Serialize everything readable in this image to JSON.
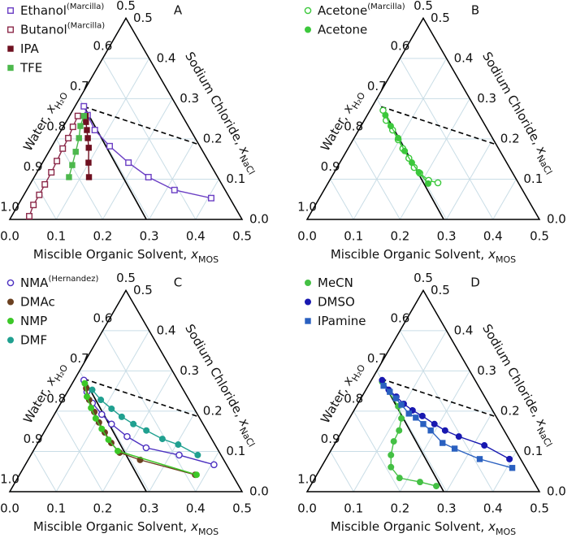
{
  "chart_data": [
    {
      "type": "ternary",
      "panel": "A",
      "xlabel": "Miscible Organic Solvent,",
      "xlabel_var": "x",
      "xlabel_sub": "MOS",
      "leftlabel": "Water,",
      "leftlabel_var": "x",
      "leftlabel_sub": "H₂O",
      "rightlabel": "Sodium Chloride,",
      "rightlabel_var": "x",
      "rightlabel_sub": "NaCl",
      "mos_lim": [
        0,
        0.5
      ],
      "nacl_lim": [
        0,
        0.5
      ],
      "water_lim": [
        0.5,
        1
      ],
      "mos_ticks": [
        {
          "value": 0,
          "label": "0.0"
        },
        0.1,
        0.2,
        0.3,
        0.4,
        0.5
      ],
      "nacl_ticks": [
        {
          "value": 0,
          "label": "0.0"
        },
        0.1,
        0.2,
        0.3,
        0.4,
        0.5
      ],
      "water_ticks": [
        0.5,
        0.6,
        0.7,
        0.8,
        0.9,
        {
          "value": 1,
          "label": "1.0"
        }
      ],
      "grid": true,
      "grid_color": "#c9dde6",
      "tie_line": {
        "mos": [
          0.02,
          0.314
        ],
        "nacl": [
          0.28,
          0.186
        ]
      },
      "boundary": {
        "mos": [
          0.02,
          0.294
        ],
        "nacl": [
          0.28,
          0
        ]
      },
      "series": [
        {
          "name": "Ethanol",
          "name_note": "(Marcilla)",
          "color": "#6b3fc4",
          "marker": "square-open",
          "mos": [
            0.019,
            0.038,
            0.072,
            0.124,
            0.185,
            0.246,
            0.318,
            0.407
          ],
          "nacl": [
            0.281,
            0.259,
            0.222,
            0.182,
            0.141,
            0.105,
            0.073,
            0.053
          ]
        },
        {
          "name": "Butanol",
          "name_note": "(Marcilla)",
          "color": "#8c2a4a",
          "marker": "square-open",
          "mos": [
            0.018,
            0.021,
            0.025,
            0.026,
            0.029,
            0.031,
            0.032,
            0.033,
            0.033,
            0.038
          ],
          "nacl": [
            0.257,
            0.23,
            0.202,
            0.176,
            0.145,
            0.117,
            0.087,
            0.061,
            0.036,
            0.008
          ]
        },
        {
          "name": "IPA",
          "color": "#6e1020",
          "marker": "square",
          "mos": [
            0.035,
            0.043,
            0.055,
            0.067,
            0.081,
            0.099,
            0.118
          ],
          "nacl": [
            0.257,
            0.242,
            0.222,
            0.202,
            0.178,
            0.141,
            0.105
          ]
        },
        {
          "name": "TFE",
          "color": "#4cb84c",
          "marker": "square",
          "mos": [
            0.031,
            0.036,
            0.048,
            0.058,
            0.067,
            0.075
          ],
          "nacl": [
            0.257,
            0.232,
            0.202,
            0.168,
            0.135,
            0.105
          ]
        }
      ]
    },
    {
      "type": "ternary",
      "panel": "B",
      "xlabel": "Miscible Organic Solvent,",
      "xlabel_var": "x",
      "xlabel_sub": "MOS",
      "leftlabel": "Water,",
      "leftlabel_var": "x",
      "leftlabel_sub": "H₂O",
      "rightlabel": "Sodium Chloride,",
      "rightlabel_var": "x",
      "rightlabel_sub": "NaCl",
      "mos_lim": [
        0,
        0.5
      ],
      "nacl_lim": [
        0,
        0.5
      ],
      "water_lim": [
        0.5,
        1
      ],
      "mos_ticks": [
        {
          "value": 0,
          "label": "0.0"
        },
        0.1,
        0.2,
        0.3,
        0.4,
        0.5
      ],
      "nacl_ticks": [
        {
          "value": 0,
          "label": "0.0"
        },
        0.1,
        0.2,
        0.3,
        0.4,
        0.5
      ],
      "water_ticks": [
        0.5,
        0.6,
        0.7,
        0.8,
        0.9,
        {
          "value": 1,
          "label": "1.0"
        }
      ],
      "grid": true,
      "grid_color": "#c9dde6",
      "tie_line": {
        "mos": [
          0.02,
          0.314
        ],
        "nacl": [
          0.28,
          0.186
        ]
      },
      "boundary": {
        "mos": [
          0.02,
          0.294
        ],
        "nacl": [
          0.28,
          0
        ]
      },
      "series": [
        {
          "name": "Acetone",
          "name_note": "(Marcilla)",
          "color": "#3cc83c",
          "marker": "circle-open",
          "mos": [
            0.028,
            0.047,
            0.073,
            0.097,
            0.118,
            0.143,
            0.166,
            0.185,
            0.213,
            0.236
          ],
          "nacl": [
            0.271,
            0.246,
            0.222,
            0.198,
            0.176,
            0.152,
            0.129,
            0.115,
            0.097,
            0.091
          ]
        },
        {
          "name": "Acetone",
          "color": "#3cc83c",
          "marker": "circle",
          "mos": [
            0.039,
            0.064,
            0.095,
            0.125,
            0.155,
            0.182,
            0.216
          ],
          "nacl": [
            0.259,
            0.232,
            0.202,
            0.17,
            0.141,
            0.117,
            0.089
          ]
        }
      ]
    },
    {
      "type": "ternary",
      "panel": "C",
      "xlabel": "Miscible Organic Solvent,",
      "xlabel_var": "x",
      "xlabel_sub": "MOS",
      "leftlabel": "Water,",
      "leftlabel_var": "x",
      "leftlabel_sub": "H₂O",
      "rightlabel": "Sodium Chloride,",
      "rightlabel_var": "x",
      "rightlabel_sub": "NaCl",
      "mos_lim": [
        0,
        0.5
      ],
      "nacl_lim": [
        0,
        0.5
      ],
      "water_lim": [
        0.5,
        1
      ],
      "mos_ticks": [
        {
          "value": 0,
          "label": "0.0"
        },
        0.1,
        0.2,
        0.3,
        0.4,
        0.5
      ],
      "nacl_ticks": [
        {
          "value": 0,
          "label": "0.0"
        },
        0.1,
        0.2,
        0.3,
        0.4,
        0.5
      ],
      "water_ticks": [
        0.5,
        0.6,
        0.7,
        0.8,
        0.9,
        {
          "value": 1,
          "label": "1.0"
        }
      ],
      "grid": true,
      "grid_color": "#c9dde6",
      "tie_line": {
        "mos": [
          0.02,
          0.314
        ],
        "nacl": [
          0.28,
          0.186
        ]
      },
      "boundary": {
        "mos": [
          0.02,
          0.294
        ],
        "nacl": [
          0.28,
          0
        ]
      },
      "series": [
        {
          "name": "NMA",
          "name_note": "(Hernandez)",
          "color": "#4b2fc0",
          "marker": "circle-open",
          "mos": [
            0.021,
            0.042,
            0.068,
            0.102,
            0.135,
            0.184,
            0.239,
            0.319,
            0.406
          ],
          "nacl": [
            0.277,
            0.248,
            0.22,
            0.192,
            0.168,
            0.137,
            0.109,
            0.091,
            0.067
          ]
        },
        {
          "name": "DMAc",
          "color": "#6b4020",
          "marker": "circle",
          "mos": [
            0.036,
            0.057,
            0.083,
            0.106,
            0.131,
            0.158,
            0.188,
            0.241,
            0.378
          ],
          "nacl": [
            0.257,
            0.228,
            0.198,
            0.172,
            0.147,
            0.121,
            0.097,
            0.079,
            0.042
          ]
        },
        {
          "name": "NMP",
          "color": "#3cc828",
          "marker": "circle",
          "mos": [
            0.027,
            0.048,
            0.071,
            0.094,
            0.12,
            0.148,
            0.182,
            0.381
          ],
          "nacl": [
            0.269,
            0.236,
            0.208,
            0.182,
            0.156,
            0.129,
            0.101,
            0.042
          ]
        },
        {
          "name": "DMF",
          "color": "#20a090",
          "marker": "circle",
          "mos": [
            0.051,
            0.082,
            0.116,
            0.148,
            0.182,
            0.218,
            0.263,
            0.304,
            0.359
          ],
          "nacl": [
            0.253,
            0.228,
            0.206,
            0.186,
            0.168,
            0.152,
            0.131,
            0.117,
            0.091
          ]
        }
      ]
    },
    {
      "type": "ternary",
      "panel": "D",
      "xlabel": "Miscible Organic Solvent,",
      "xlabel_var": "x",
      "xlabel_sub": "MOS",
      "leftlabel": "Water,",
      "leftlabel_var": "x",
      "leftlabel_sub": "H₂O",
      "rightlabel": "Sodium Chloride,",
      "rightlabel_var": "x",
      "rightlabel_sub": "NaCl",
      "mos_lim": [
        0,
        0.5
      ],
      "nacl_lim": [
        0,
        0.5
      ],
      "water_lim": [
        0.5,
        1
      ],
      "mos_ticks": [
        {
          "value": 0,
          "label": "0.0"
        },
        0.1,
        0.2,
        0.3,
        0.4,
        0.5
      ],
      "nacl_ticks": [
        {
          "value": 0,
          "label": "0.0"
        },
        0.1,
        0.2,
        0.3,
        0.4,
        0.5
      ],
      "water_ticks": [
        0.5,
        0.6,
        0.7,
        0.8,
        0.9,
        {
          "value": 1,
          "label": "1.0"
        }
      ],
      "grid": true,
      "grid_color": "#c9dde6",
      "tie_line": {
        "mos": [
          0.02,
          0.314
        ],
        "nacl": [
          0.28,
          0.186
        ]
      },
      "boundary": {
        "mos": [
          0.02,
          0.294
        ],
        "nacl": [
          0.28,
          0
        ]
      },
      "series": [
        {
          "name": "MeCN",
          "color": "#44c044",
          "marker": "circle",
          "mos": [
            0.025,
            0.09,
            0.112,
            0.122,
            0.124,
            0.135,
            0.15,
            0.182,
            0.231,
            0.271
          ],
          "nacl": [
            0.273,
            0.212,
            0.182,
            0.152,
            0.125,
            0.091,
            0.061,
            0.034,
            0.024,
            0.014
          ]
        },
        {
          "name": "DMSO",
          "color": "#1818b0",
          "marker": "circle",
          "mos": [
            0.023,
            0.049,
            0.074,
            0.099,
            0.126,
            0.154,
            0.19,
            0.221,
            0.258,
            0.324,
            0.395
          ],
          "nacl": [
            0.277,
            0.253,
            0.236,
            0.218,
            0.202,
            0.188,
            0.168,
            0.152,
            0.137,
            0.115,
            0.081
          ]
        },
        {
          "name": "IPamine",
          "color": "#2a60c0",
          "marker": "square",
          "mos": [
            0.033,
            0.054,
            0.075,
            0.095,
            0.122,
            0.142,
            0.166,
            0.19,
            0.231,
            0.264,
            0.331,
            0.412
          ],
          "nacl": [
            0.263,
            0.248,
            0.232,
            0.216,
            0.194,
            0.184,
            0.168,
            0.152,
            0.121,
            0.107,
            0.081,
            0.059
          ]
        }
      ]
    }
  ]
}
